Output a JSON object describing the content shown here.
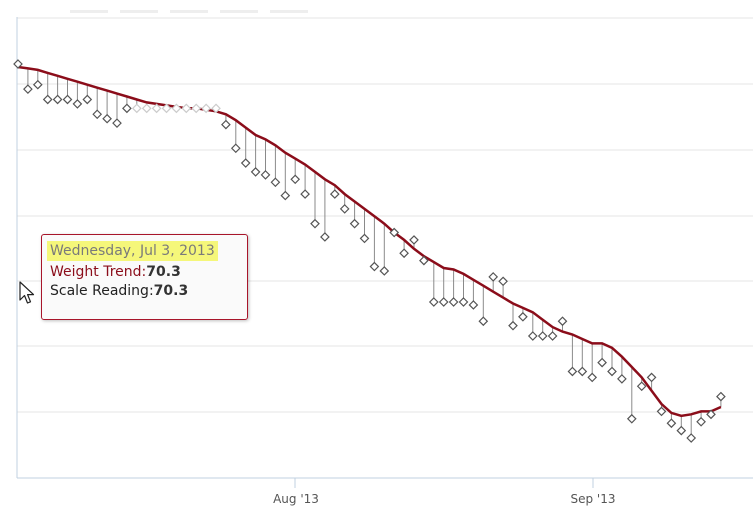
{
  "chart_data": {
    "type": "line",
    "x_tick_labels": [
      "Aug '13",
      "Sep '13"
    ],
    "series": [
      {
        "name": "Weight Trend",
        "color": "#8b0d1a",
        "values": [
          80.6,
          80.5,
          80.4,
          80.2,
          80.0,
          79.8,
          79.6,
          79.4,
          79.2,
          79.0,
          78.8,
          78.6,
          78.4,
          78.2,
          78.1,
          78.0,
          77.9,
          77.8,
          77.8,
          77.7,
          77.6,
          77.4,
          77.0,
          76.5,
          76.0,
          75.7,
          75.3,
          74.8,
          74.4,
          74.0,
          73.5,
          73.0,
          72.6,
          72.0,
          71.5,
          71.0,
          70.5,
          70.0,
          69.4,
          68.9,
          68.3,
          67.8,
          67.4,
          67.0,
          66.9,
          66.6,
          66.2,
          65.8,
          65.4,
          65.0,
          64.6,
          64.3,
          64.0,
          63.5,
          63.0,
          62.7,
          62.5,
          62.2,
          61.9,
          61.9,
          61.6,
          61.0,
          60.3,
          59.6,
          58.7,
          57.8,
          57.2,
          57.0,
          57.1,
          57.3,
          57.3,
          57.6
        ]
      },
      {
        "name": "Scale Reading",
        "color": "#777777",
        "values": [
          80.8,
          79.1,
          79.4,
          78.4,
          78.4,
          78.4,
          78.1,
          78.4,
          77.4,
          77.1,
          76.8,
          77.8,
          77.8,
          77.8,
          77.8,
          77.8,
          77.8,
          77.8,
          77.8,
          77.8,
          77.8,
          76.7,
          75.1,
          74.1,
          73.5,
          73.3,
          72.8,
          71.9,
          73.0,
          72.0,
          70.0,
          69.1,
          72.0,
          71.0,
          70.0,
          69.0,
          67.1,
          66.8,
          69.4,
          68.0,
          68.9,
          67.5,
          64.7,
          64.7,
          64.7,
          64.7,
          64.5,
          63.4,
          66.4,
          66.1,
          63.1,
          63.7,
          62.4,
          62.4,
          62.4,
          63.4,
          60.0,
          60.0,
          59.6,
          60.6,
          60.0,
          59.5,
          56.8,
          59.0,
          59.6,
          57.3,
          56.5,
          56.0,
          55.5,
          56.6,
          57.1,
          58.3
        ]
      }
    ],
    "tooltip": {
      "date": "Wednesday, Jul 3, 2013",
      "trend_label": "Weight Trend:",
      "trend_value": "70.3",
      "scale_label": "Scale Reading:",
      "scale_value": "70.3"
    },
    "grid": true
  }
}
